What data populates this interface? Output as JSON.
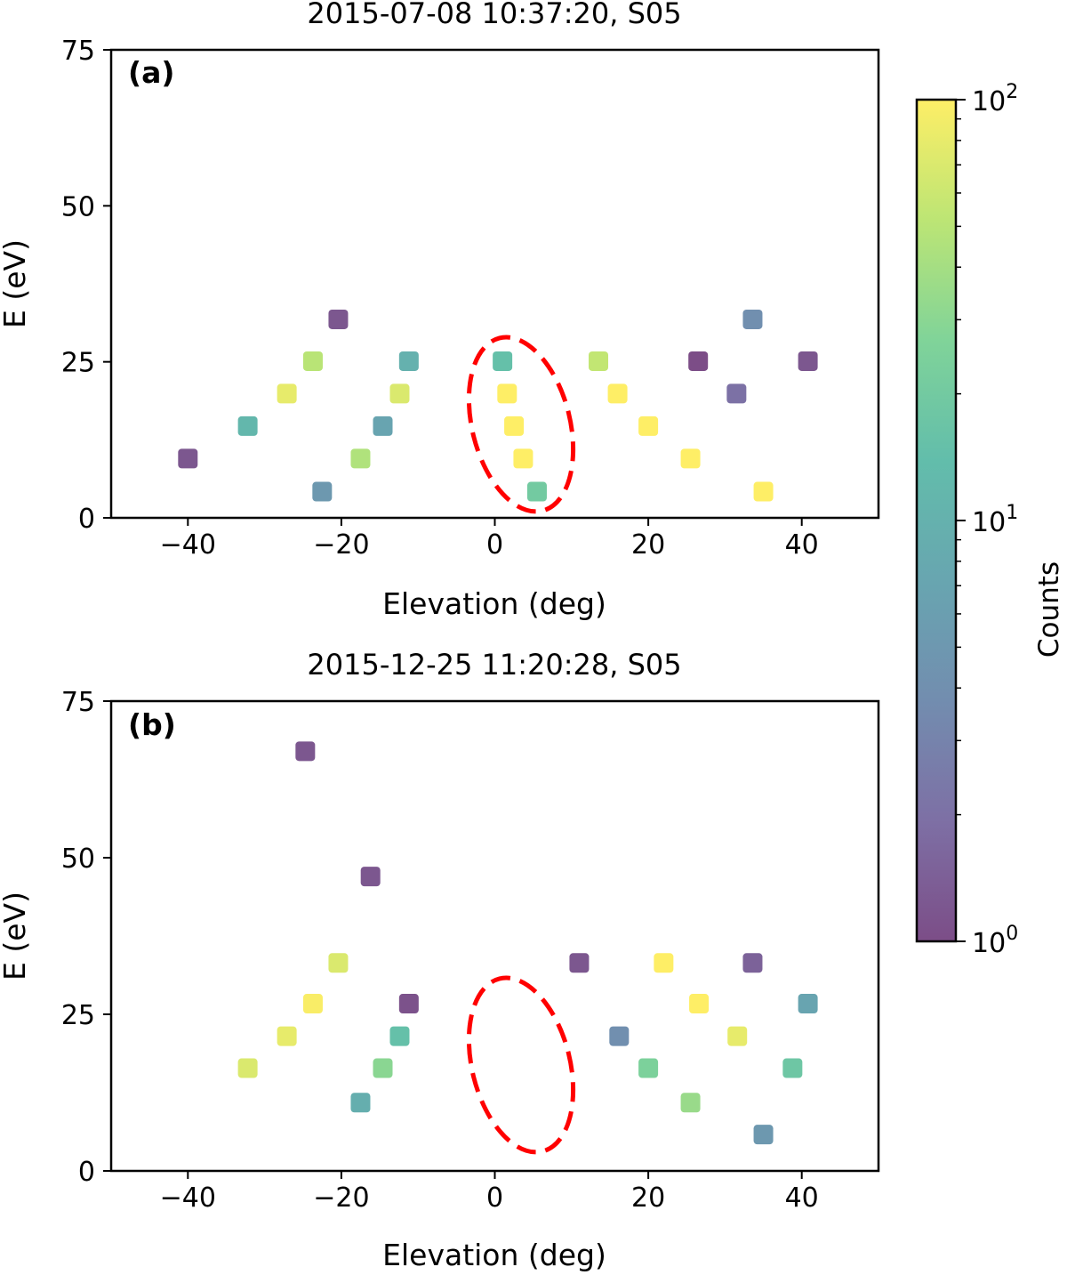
{
  "chart_data": [
    {
      "type": "scatter",
      "panel_label": "(a)",
      "title": "2015-07-08 10:37:20, S05",
      "xlabel": "Elevation (deg)",
      "ylabel": "E (eV)",
      "xlim": [
        -50,
        50
      ],
      "ylim": [
        0,
        75
      ],
      "xticks": [
        -40,
        -20,
        0,
        20,
        40
      ],
      "yticks": [
        0,
        25,
        50,
        75
      ],
      "points": [
        {
          "x": -40.0,
          "y": 9.5,
          "c": 1.2
        },
        {
          "x": -32.2,
          "y": 14.7,
          "c": 12
        },
        {
          "x": -27.1,
          "y": 19.9,
          "c": 80
        },
        {
          "x": -23.7,
          "y": 25.1,
          "c": 50
        },
        {
          "x": -22.5,
          "y": 4.2,
          "c": 5
        },
        {
          "x": -20.4,
          "y": 31.8,
          "c": 1.2
        },
        {
          "x": -17.5,
          "y": 9.5,
          "c": 45
        },
        {
          "x": -14.6,
          "y": 14.7,
          "c": 7
        },
        {
          "x": -12.4,
          "y": 19.9,
          "c": 70
        },
        {
          "x": -11.2,
          "y": 25.1,
          "c": 10
        },
        {
          "x": 1.0,
          "y": 25.1,
          "c": 15
        },
        {
          "x": 1.6,
          "y": 19.9,
          "c": 100
        },
        {
          "x": 2.5,
          "y": 14.7,
          "c": 100
        },
        {
          "x": 3.7,
          "y": 9.5,
          "c": 100
        },
        {
          "x": 5.5,
          "y": 4.2,
          "c": 20
        },
        {
          "x": 13.5,
          "y": 25.1,
          "c": 55
        },
        {
          "x": 16.0,
          "y": 19.9,
          "c": 100
        },
        {
          "x": 20.0,
          "y": 14.7,
          "c": 100
        },
        {
          "x": 25.5,
          "y": 9.5,
          "c": 100
        },
        {
          "x": 26.5,
          "y": 25.1,
          "c": 1.0
        },
        {
          "x": 31.5,
          "y": 19.9,
          "c": 2
        },
        {
          "x": 33.6,
          "y": 31.8,
          "c": 4
        },
        {
          "x": 35.0,
          "y": 4.2,
          "c": 100
        },
        {
          "x": 40.8,
          "y": 25.1,
          "c": 1.2
        }
      ],
      "annotation": {
        "shape": "dashed ellipse",
        "color": "#ff0000",
        "center": [
          4.5,
          16.3
        ],
        "note": "highlighted region"
      }
    },
    {
      "type": "scatter",
      "panel_label": "(b)",
      "title": "2015-12-25 11:20:28, S05",
      "xlabel": "Elevation (deg)",
      "ylabel": "E (eV)",
      "xlim": [
        -50,
        50
      ],
      "ylim": [
        0,
        75
      ],
      "xticks": [
        -40,
        -20,
        0,
        20,
        40
      ],
      "yticks": [
        0,
        25,
        50,
        75
      ],
      "points": [
        {
          "x": -32.2,
          "y": 16.4,
          "c": 70
        },
        {
          "x": -27.1,
          "y": 21.5,
          "c": 80
        },
        {
          "x": -23.7,
          "y": 26.7,
          "c": 95
        },
        {
          "x": -24.7,
          "y": 67.0,
          "c": 1.2
        },
        {
          "x": -20.4,
          "y": 33.2,
          "c": 70
        },
        {
          "x": -17.5,
          "y": 10.9,
          "c": 9
        },
        {
          "x": -16.2,
          "y": 47.0,
          "c": 1.2
        },
        {
          "x": -14.6,
          "y": 16.4,
          "c": 30
        },
        {
          "x": -12.4,
          "y": 21.5,
          "c": 15
        },
        {
          "x": -11.2,
          "y": 26.7,
          "c": 1.1
        },
        {
          "x": 11.0,
          "y": 33.2,
          "c": 1.2
        },
        {
          "x": 16.2,
          "y": 21.5,
          "c": 4
        },
        {
          "x": 20.0,
          "y": 16.4,
          "c": 25
        },
        {
          "x": 22.0,
          "y": 33.2,
          "c": 100
        },
        {
          "x": 25.5,
          "y": 10.9,
          "c": 35
        },
        {
          "x": 26.6,
          "y": 26.7,
          "c": 100
        },
        {
          "x": 31.6,
          "y": 21.5,
          "c": 80
        },
        {
          "x": 33.6,
          "y": 33.2,
          "c": 1.5
        },
        {
          "x": 35.0,
          "y": 5.8,
          "c": 5
        },
        {
          "x": 38.8,
          "y": 16.4,
          "c": 18
        },
        {
          "x": 40.8,
          "y": 26.7,
          "c": 7
        }
      ],
      "annotation": {
        "shape": "dashed ellipse",
        "color": "#ff0000",
        "center": [
          4.5,
          17.5
        ],
        "note": "empty highlighted region"
      }
    }
  ],
  "colorbar": {
    "label": "Counts",
    "scale": "log",
    "range": [
      1,
      100
    ],
    "ticks": [
      {
        "value": 1,
        "base": "10",
        "exp": "0"
      },
      {
        "value": 10,
        "base": "10",
        "exp": "1"
      },
      {
        "value": 100,
        "base": "10",
        "exp": "2"
      }
    ],
    "colormap": "viridis",
    "alpha": 0.7,
    "colors": [
      "#440154",
      "#46327e",
      "#365c8d",
      "#277f8e",
      "#1fa187",
      "#4ac16d",
      "#a0da39",
      "#fde725"
    ]
  }
}
